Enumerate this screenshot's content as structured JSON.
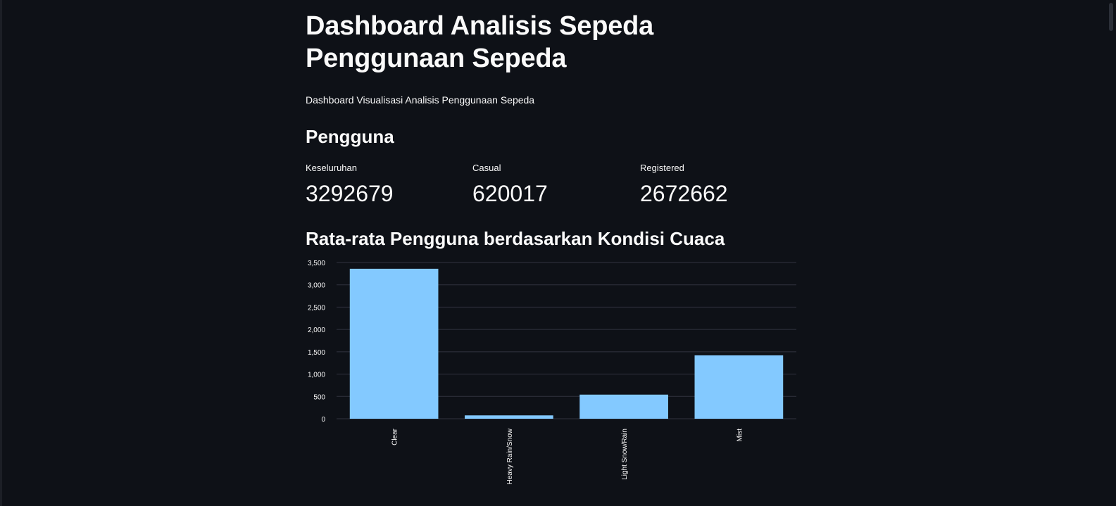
{
  "header": {
    "title_line1": "Dashboard Analisis Sepeda",
    "title_line2": "Penggunaan Sepeda",
    "caption": "Dashboard Visualisasi Analisis Penggunaan Sepeda"
  },
  "users_section": {
    "title": "Pengguna",
    "metrics": [
      {
        "label": "Keseluruhan",
        "value": "3292679"
      },
      {
        "label": "Casual",
        "value": "620017"
      },
      {
        "label": "Registered",
        "value": "2672662"
      }
    ]
  },
  "weather_section": {
    "title": "Rata-rata Pengguna berdasarkan Kondisi Cuaca"
  },
  "chart_data": {
    "type": "bar",
    "categories": [
      "Clear",
      "Heavy Rain/Snow",
      "Light Snow/Rain",
      "Mist"
    ],
    "values": [
      3360,
      75,
      540,
      1420
    ],
    "ylim": [
      0,
      3500
    ],
    "yticks": [
      0,
      500,
      1000,
      1500,
      2000,
      2500,
      3000,
      3500
    ],
    "ytick_labels": [
      "0",
      "500",
      "1,000",
      "1,500",
      "2,000",
      "2,500",
      "3,000",
      "3,500"
    ],
    "grid": true,
    "bar_color": "#83c9ff",
    "grid_color": "#31333f",
    "tick_label_color": "#fafafa"
  }
}
